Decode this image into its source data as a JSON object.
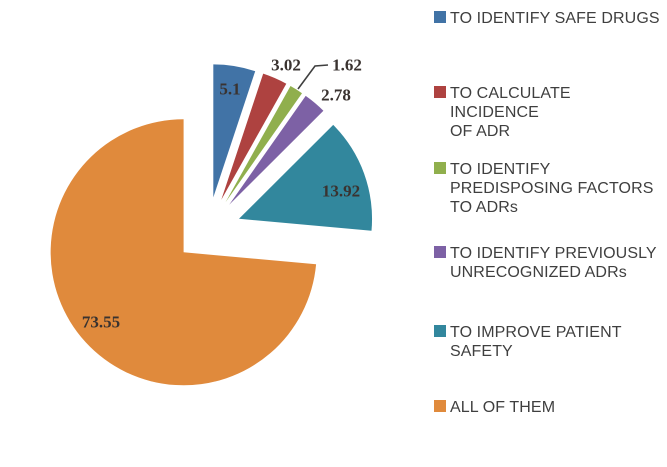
{
  "chart_data": {
    "type": "pie",
    "title": "",
    "exploded": true,
    "legend_position": "right",
    "categories": [
      "TO IDENTIFY SAFE DRUGS",
      "TO CALCULATE INCIDENCE OF ADR",
      "TO IDENTIFY PREDISPOSING FACTORS TO ADRs",
      "TO IDENTIFY PREVIOUSLY UNRECOGNIZED ADRs",
      "TO IMPROVE PATIENT SAFETY",
      "ALL OF THEM"
    ],
    "values": [
      5.1,
      3.02,
      1.62,
      2.78,
      13.92,
      73.55
    ],
    "data_labels": [
      "5.1",
      "3.02",
      "1.62",
      "2.78",
      "13.92",
      "73.55"
    ],
    "colors": [
      "#4173A6",
      "#AE4240",
      "#90AF4D",
      "#7D61A5",
      "#32879D",
      "#E08A3C"
    ],
    "legend_lines": [
      "TO IDENTIFY SAFE DRUGS",
      "TO CALCULATE INCIDENCE\nOF ADR",
      "TO IDENTIFY\nPREDISPOSING FACTORS\nTO ADRs",
      "TO IDENTIFY PREVIOUSLY\nUNRECOGNIZED ADRs",
      "TO IMPROVE PATIENT\nSAFETY",
      "ALL OF THEM"
    ],
    "label_color": "#3a3330",
    "legend_text_color": "#3f3f3f",
    "leader_line_color": "#3f3f3f"
  }
}
